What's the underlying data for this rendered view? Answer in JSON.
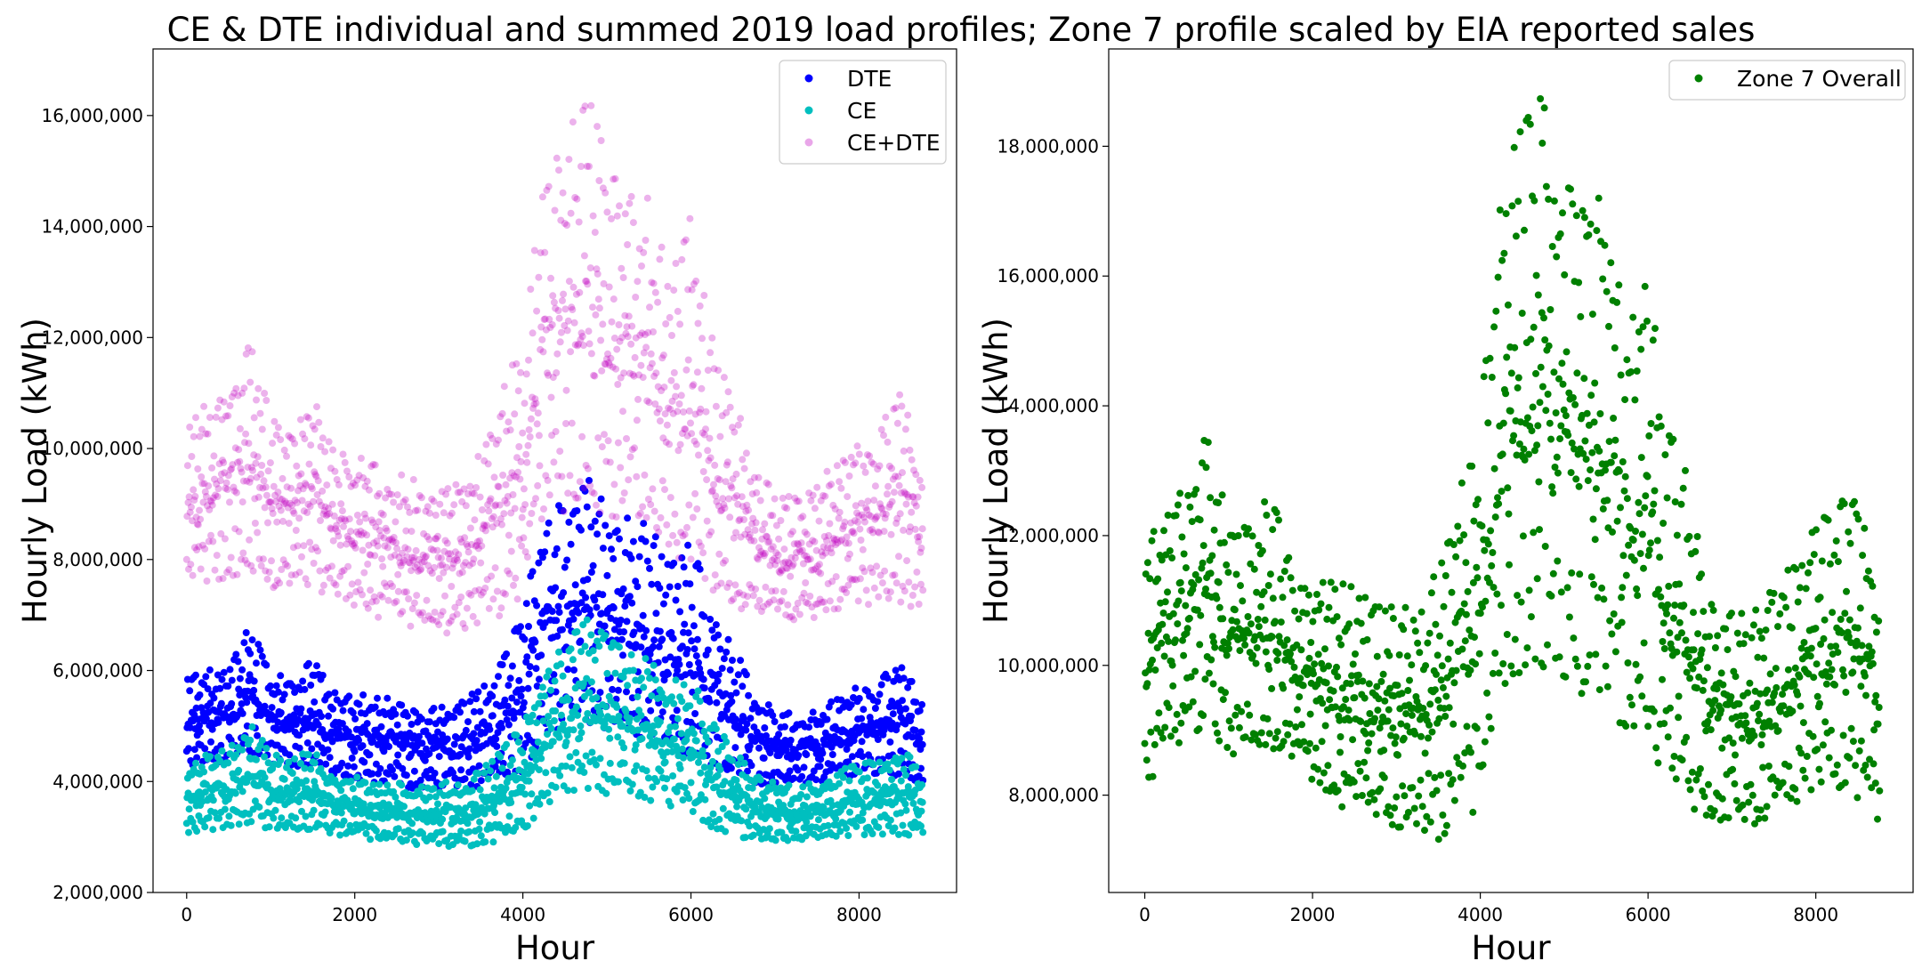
{
  "title": "CE & DTE individual and summed 2019 load profiles; Zone 7 profile scaled by EIA reported sales",
  "chart_data": [
    {
      "type": "scatter",
      "xlabel": "Hour",
      "ylabel": "Hourly Load (kWh)",
      "xlim": [
        -400,
        9160
      ],
      "ylim": [
        2000000,
        17200000
      ],
      "xticks": [
        0,
        2000,
        4000,
        6000,
        8000
      ],
      "xtick_labels": [
        "0",
        "2000",
        "4000",
        "6000",
        "8000"
      ],
      "yticks": [
        2000000,
        4000000,
        6000000,
        8000000,
        10000000,
        12000000,
        14000000,
        16000000
      ],
      "ytick_labels": [
        "2,000,000",
        "4,000,000",
        "6,000,000",
        "8,000,000",
        "10,000,000",
        "12,000,000",
        "14,000,000",
        "16,000,000"
      ],
      "legend_position": "top-right",
      "grid": false,
      "series": [
        {
          "name": "DTE",
          "color": "#0000ff",
          "opacity": 1,
          "x": [
            0,
            250,
            500,
            750,
            1000,
            1250,
            1500,
            1750,
            2000,
            2250,
            2500,
            2750,
            3000,
            3250,
            3500,
            3750,
            4000,
            4250,
            4500,
            4750,
            5000,
            5250,
            5500,
            5750,
            6000,
            6250,
            6500,
            6750,
            7000,
            7250,
            7500,
            7750,
            8000,
            8250,
            8500,
            8760
          ],
          "y_low": [
            4200000,
            4300000,
            4300000,
            4400000,
            4200000,
            4200000,
            4200000,
            4100000,
            4000000,
            3900000,
            3900000,
            3800000,
            3800000,
            3800000,
            3800000,
            3900000,
            4000000,
            4700000,
            4900000,
            4900000,
            4800000,
            4700000,
            4600000,
            4500000,
            4200000,
            4100000,
            4000000,
            3900000,
            3900000,
            3900000,
            3900000,
            4000000,
            4100000,
            4100000,
            4000000,
            3900000
          ],
          "y_high": [
            5900000,
            6000000,
            6100000,
            6800000,
            6000000,
            5800000,
            6200000,
            5600000,
            5600000,
            5500000,
            5500000,
            5400000,
            5400000,
            5400000,
            5700000,
            6300000,
            7000000,
            8900000,
            9000000,
            9500000,
            9000000,
            8800000,
            8600000,
            8000000,
            8300000,
            7200000,
            6500000,
            5600000,
            5300000,
            5200000,
            5300000,
            5600000,
            5700000,
            5800000,
            6300000,
            5400000
          ]
        },
        {
          "name": "CE",
          "color": "#00bfbf",
          "opacity": 1,
          "x": [
            0,
            250,
            500,
            750,
            1000,
            1250,
            1500,
            1750,
            2000,
            2250,
            2500,
            2750,
            3000,
            3250,
            3500,
            3750,
            4000,
            4250,
            4500,
            4750,
            5000,
            5250,
            5500,
            5750,
            6000,
            6250,
            6500,
            6750,
            7000,
            7250,
            7500,
            7750,
            8000,
            8250,
            8500,
            8760
          ],
          "y_low": [
            3000000,
            3100000,
            3100000,
            3200000,
            3100000,
            3100000,
            3100000,
            3000000,
            3000000,
            2900000,
            2900000,
            2800000,
            2800000,
            2800000,
            2800000,
            2900000,
            3000000,
            3500000,
            3700000,
            3800000,
            3700000,
            3700000,
            3600000,
            3500000,
            3300000,
            3100000,
            3000000,
            2900000,
            2900000,
            2900000,
            2900000,
            2900000,
            3000000,
            3000000,
            3000000,
            2900000
          ],
          "y_high": [
            4200000,
            4500000,
            4600000,
            5100000,
            4500000,
            4400000,
            4600000,
            4100000,
            4100000,
            4000000,
            4000000,
            3900000,
            4000000,
            4000000,
            4200000,
            4600000,
            5000000,
            6000000,
            6500000,
            7000000,
            6600000,
            6300000,
            6200000,
            5800000,
            5900000,
            5100000,
            4600000,
            4100000,
            4000000,
            3900000,
            4000000,
            4200000,
            4300000,
            4400000,
            4600000,
            4200000
          ]
        },
        {
          "name": "CE+DTE",
          "color": "#bf00bf",
          "opacity": 0.3,
          "x": [
            0,
            250,
            500,
            750,
            1000,
            1250,
            1500,
            1750,
            2000,
            2250,
            2500,
            2750,
            3000,
            3250,
            3500,
            3750,
            4000,
            4250,
            4500,
            4750,
            5000,
            5250,
            5500,
            5750,
            6000,
            6250,
            6500,
            6750,
            7000,
            7250,
            7500,
            7750,
            8000,
            8250,
            8500,
            8760
          ],
          "y_low": [
            7400000,
            7500000,
            7500000,
            7700000,
            7400000,
            7400000,
            7400000,
            7200000,
            7100000,
            6900000,
            6800000,
            6600000,
            6600000,
            6600000,
            6700000,
            6900000,
            7100000,
            8300000,
            8700000,
            8800000,
            8600000,
            8400000,
            8200000,
            8000000,
            7600000,
            7200000,
            7000000,
            6900000,
            6800000,
            6800000,
            6800000,
            6900000,
            7100000,
            7100000,
            7000000,
            6900000
          ],
          "y_high": [
            10300000,
            10900000,
            11100000,
            11900000,
            10600000,
            10400000,
            11100000,
            10000000,
            9900000,
            9700000,
            9600000,
            9400000,
            9400000,
            9400000,
            10000000,
            11000000,
            12000000,
            14800000,
            15500000,
            16500000,
            15200000,
            14800000,
            14600000,
            13000000,
            14200000,
            12000000,
            11000000,
            9700000,
            9200000,
            9100000,
            9300000,
            9900000,
            10100000,
            10300000,
            11300000,
            9600000
          ]
        }
      ]
    },
    {
      "type": "scatter",
      "xlabel": "Hour",
      "ylabel": "Hourly Load (kWh)",
      "xlim": [
        -430,
        9160
      ],
      "ylim": [
        6500000,
        19500000
      ],
      "xticks": [
        0,
        2000,
        4000,
        6000,
        8000
      ],
      "xtick_labels": [
        "0",
        "2000",
        "4000",
        "6000",
        "8000"
      ],
      "yticks": [
        8000000,
        10000000,
        12000000,
        14000000,
        16000000,
        18000000
      ],
      "ytick_labels": [
        "8,000,000",
        "10,000,000",
        "12,000,000",
        "14,000,000",
        "16,000,000",
        "18,000,000"
      ],
      "legend_position": "top-right",
      "grid": false,
      "series": [
        {
          "name": "Zone 7 Overall",
          "color": "#008000",
          "opacity": 1,
          "x": [
            0,
            250,
            500,
            750,
            1000,
            1250,
            1500,
            1750,
            2000,
            2250,
            2500,
            2750,
            3000,
            3250,
            3500,
            3750,
            4000,
            4250,
            4500,
            4750,
            5000,
            5250,
            5500,
            5750,
            6000,
            6250,
            6500,
            6750,
            7000,
            7250,
            7500,
            7750,
            8000,
            8250,
            8500,
            8760
          ],
          "y_low": [
            7900000,
            8600000,
            8700000,
            9000000,
            8500000,
            8600000,
            8600000,
            8300000,
            8100000,
            7800000,
            7600000,
            7500000,
            7400000,
            7400000,
            7200000,
            7500000,
            7600000,
            9300000,
            9700000,
            9700000,
            9500000,
            9300000,
            9000000,
            8800000,
            8300000,
            7900000,
            7400000,
            7400000,
            7500000,
            7400000,
            7600000,
            7700000,
            7900000,
            8000000,
            7800000,
            7500000
          ],
          "y_high": [
            12100000,
            12500000,
            12800000,
            13600000,
            12200000,
            12100000,
            12700000,
            11500000,
            11400000,
            11300000,
            11200000,
            10900000,
            10900000,
            10900000,
            11500000,
            12900000,
            13800000,
            17500000,
            18300000,
            18800000,
            17400000,
            17200000,
            17200000,
            15000000,
            16300000,
            13700000,
            12800000,
            11100000,
            10800000,
            10800000,
            11200000,
            11600000,
            12200000,
            12400000,
            12900000,
            11000000
          ]
        }
      ]
    }
  ]
}
